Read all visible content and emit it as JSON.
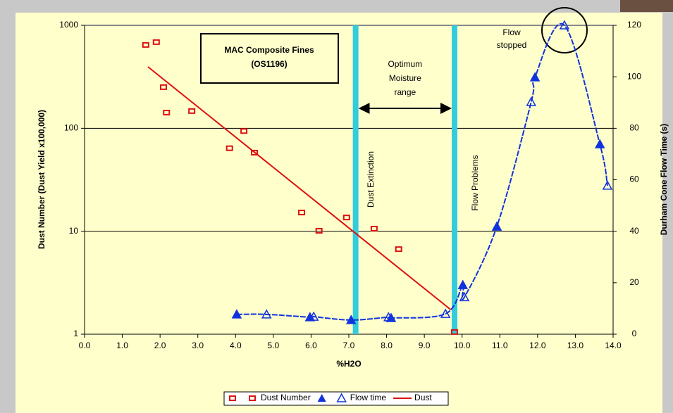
{
  "chart_data": {
    "type": "scatter",
    "x_label": "%H2O",
    "y_label": "Dust Number (Dust Yield x100,000)",
    "y2_label": "Durham Cone Flow Time (s)",
    "xlim": [
      0,
      14
    ],
    "xticks": [
      {
        "value": 0,
        "label": "0.0"
      },
      {
        "value": 1,
        "label": "1.0"
      },
      {
        "value": 2,
        "label": "2.0"
      },
      {
        "value": 3,
        "label": "3.0"
      },
      {
        "value": 4,
        "label": "4.0"
      },
      {
        "value": 5,
        "label": "5.0"
      },
      {
        "value": 6,
        "label": "6.0"
      },
      {
        "value": 7,
        "label": "7.0"
      },
      {
        "value": 8,
        "label": "8.0"
      },
      {
        "value": 9,
        "label": "9.0"
      },
      {
        "value": 10,
        "label": "10.0"
      },
      {
        "value": 11,
        "label": "11.0"
      },
      {
        "value": 12,
        "label": "12.0"
      },
      {
        "value": 13,
        "label": "13.0"
      },
      {
        "value": 14,
        "label": "14.0"
      }
    ],
    "ylim": [
      1,
      1000
    ],
    "yticks": [
      1,
      10,
      100,
      1000
    ],
    "y_log": true,
    "y2lim": [
      0,
      120
    ],
    "y2ticks": [
      0,
      20,
      40,
      60,
      80,
      100,
      120
    ],
    "grid": true,
    "vlines": [
      7.18,
      9.8
    ],
    "vline_color": "#33ccdd",
    "annotations": [
      {
        "lines": [
          "MAC Composite Fines",
          "(OS1196)"
        ]
      },
      {
        "lines": [
          "Optimum",
          "Moisture",
          "range"
        ]
      },
      {
        "text": "Dust Extinction"
      },
      {
        "text": "Flow Problems"
      },
      {
        "lines": [
          "Flow",
          "stopped"
        ]
      }
    ],
    "series": [
      {
        "name": "Dust Number",
        "color": "#dd1111",
        "marker": "square",
        "x": [
          1.62,
          1.9,
          2.09,
          2.17,
          2.84,
          3.84,
          4.22,
          4.5,
          5.75,
          6.21,
          6.94,
          7.67,
          8.32,
          9.8
        ],
        "values": [
          645,
          687,
          251,
          142,
          147,
          64,
          94,
          58,
          15.2,
          10.1,
          13.6,
          10.6,
          6.7,
          1.05
        ]
      },
      {
        "name": "Flow time",
        "color": "#1133dd",
        "marker": "triangle",
        "axis": "y2",
        "x": [
          4.03,
          4.82,
          5.97,
          6.07,
          7.06,
          8.05,
          8.12,
          9.56,
          10.02,
          10.06,
          10.92,
          11.83,
          11.93,
          12.71,
          13.65,
          13.85
        ],
        "values": [
          7.7,
          7.7,
          6.6,
          6.8,
          5.5,
          6.6,
          6.3,
          7.9,
          19.1,
          14.4,
          41.8,
          90.2,
          99.8,
          120,
          73.8,
          57.7
        ]
      },
      {
        "name": "Dust",
        "color": "#dd1111",
        "marker": "line",
        "x": [
          1.68,
          9.7
        ],
        "values": [
          395,
          1.73
        ]
      }
    ]
  }
}
